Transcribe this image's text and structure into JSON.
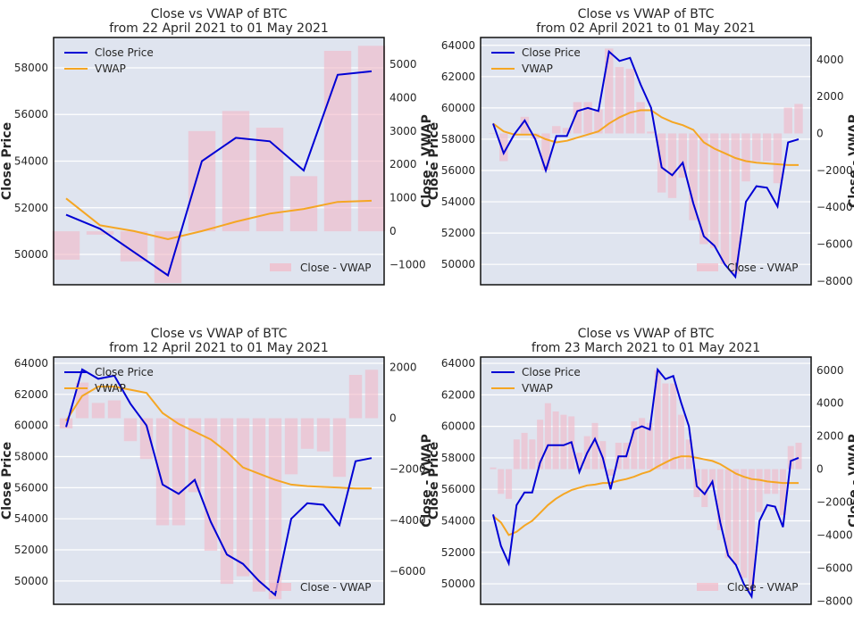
{
  "colors": {
    "close": "#0000d4",
    "vwap": "#f5a623",
    "bars": "#f2b8c6",
    "plot_bg": "#dfe4ef",
    "grid": "#ffffff"
  },
  "chart_data": [
    {
      "type": "line",
      "title_line1": "Close vs VWAP of BTC",
      "title_line2": "from 22 April 2021 to 01 May 2021",
      "ylabel": "Close Price",
      "y2label": "Close - VWAP",
      "ylim": [
        48700,
        59300
      ],
      "y2lim": [
        -1600,
        5800
      ],
      "yticks": [
        50000,
        52000,
        54000,
        56000,
        58000
      ],
      "y2ticks": [
        -1000,
        0,
        1000,
        2000,
        3000,
        4000,
        5000
      ],
      "y2tick_labels": [
        "−1000",
        "0",
        "1000",
        "2000",
        "3000",
        "4000",
        "5000"
      ],
      "legend_location": "upper left",
      "bar_legend_location": "lower right",
      "series": [
        {
          "name": "Close Price",
          "values": [
            51700,
            51100,
            50100,
            49100,
            54000,
            55000,
            54850,
            53600,
            57700,
            57850
          ]
        },
        {
          "name": "VWAP",
          "values": [
            52400,
            51250,
            51000,
            50650,
            51000,
            51400,
            51750,
            51950,
            52250,
            52300
          ]
        },
        {
          "name": "Close - VWAP",
          "values": [
            -850,
            -100,
            -900,
            -1550,
            3000,
            3600,
            3100,
            1650,
            5400,
            5550
          ]
        }
      ]
    },
    {
      "type": "line",
      "title_line1": "Close vs VWAP of BTC",
      "title_line2": "from 02 April 2021 to 01 May 2021",
      "ylabel": "Close Price",
      "y2label": "Close - VWAP",
      "ylim": [
        48700,
        64500
      ],
      "y2lim": [
        -8200,
        5200
      ],
      "yticks": [
        50000,
        52000,
        54000,
        56000,
        58000,
        60000,
        62000,
        64000
      ],
      "y2ticks": [
        -8000,
        -6000,
        -4000,
        -2000,
        0,
        2000,
        4000
      ],
      "y2tick_labels": [
        "−8000",
        "−6000",
        "−4000",
        "−2000",
        "0",
        "2000",
        "4000"
      ],
      "legend_location": "upper left",
      "bar_legend_location": "lower right",
      "series": [
        {
          "name": "Close Price",
          "values": [
            59000,
            57100,
            58300,
            59200,
            58000,
            56000,
            58200,
            58200,
            59800,
            60000,
            59800,
            63600,
            63000,
            63200,
            61500,
            60000,
            56200,
            55700,
            56500,
            53900,
            51800,
            51200,
            50000,
            49200,
            54000,
            55000,
            54900,
            53700,
            57800,
            58000
          ]
        },
        {
          "name": "VWAP",
          "values": [
            59000,
            58500,
            58300,
            58300,
            58300,
            58000,
            57800,
            57900,
            58100,
            58300,
            58500,
            59000,
            59400,
            59700,
            59850,
            59850,
            59400,
            59100,
            58900,
            58600,
            57800,
            57400,
            57100,
            56800,
            56600,
            56500,
            56450,
            56400,
            56350,
            56350
          ]
        },
        {
          "name": "Close - VWAP",
          "values": [
            0,
            -1500,
            0,
            900,
            -300,
            -2000,
            400,
            300,
            1700,
            1700,
            1300,
            4600,
            3600,
            3500,
            1700,
            100,
            -3200,
            -3500,
            -2400,
            -4700,
            -6000,
            -6200,
            -7100,
            -7600,
            -2600,
            -1500,
            -1500,
            -2700,
            1400,
            1600
          ]
        }
      ]
    },
    {
      "type": "line",
      "title_line1": "Close vs VWAP of BTC",
      "title_line2": "from 12 April 2021 to 01 May 2021",
      "ylabel": "Close Price",
      "y2label": "Close - VWAP",
      "ylim": [
        48500,
        64400
      ],
      "y2lim": [
        -7300,
        2400
      ],
      "yticks": [
        50000,
        52000,
        54000,
        56000,
        58000,
        60000,
        62000,
        64000
      ],
      "y2ticks": [
        -6000,
        -4000,
        -2000,
        0,
        2000
      ],
      "y2tick_labels": [
        "−6000",
        "−4000",
        "−2000",
        "0",
        "2000"
      ],
      "legend_location": "upper left",
      "bar_legend_location": "lower right",
      "series": [
        {
          "name": "Close Price",
          "values": [
            59900,
            63600,
            63000,
            63200,
            61400,
            60000,
            56200,
            55600,
            56500,
            53800,
            51700,
            51100,
            50000,
            49100,
            54000,
            55000,
            54900,
            53600,
            57700,
            57900
          ]
        },
        {
          "name": "VWAP",
          "values": [
            60300,
            61900,
            62500,
            62500,
            62300,
            62100,
            60800,
            60100,
            59600,
            59100,
            58300,
            57300,
            56900,
            56500,
            56200,
            56100,
            56050,
            56000,
            55950,
            55950
          ]
        },
        {
          "name": "Close - VWAP",
          "values": [
            -400,
            1400,
            600,
            700,
            -900,
            -1600,
            -4200,
            -4200,
            -2900,
            -5200,
            -6500,
            -6200,
            -6800,
            -7100,
            -2200,
            -1200,
            -1300,
            -2300,
            1700,
            1900
          ]
        }
      ]
    },
    {
      "type": "line",
      "title_line1": "Close vs VWAP of BTC",
      "title_line2": "from 23 March 2021 to 01 May 2021",
      "ylabel": "Close Price",
      "y2label": "Close - VWAP",
      "ylim": [
        48700,
        64400
      ],
      "y2lim": [
        -8200,
        6800
      ],
      "yticks": [
        50000,
        52000,
        54000,
        56000,
        58000,
        60000,
        62000,
        64000
      ],
      "y2ticks": [
        -8000,
        -6000,
        -4000,
        -2000,
        0,
        2000,
        4000,
        6000
      ],
      "y2tick_labels": [
        "−8000",
        "−6000",
        "−4000",
        "−2000",
        "0",
        "2000",
        "4000",
        "6000"
      ],
      "legend_location": "upper left",
      "bar_legend_location": "lower right",
      "series": [
        {
          "name": "Close Price",
          "values": [
            54400,
            52400,
            51300,
            55000,
            55800,
            55800,
            57700,
            58800,
            58800,
            58800,
            59000,
            57100,
            58300,
            59200,
            58000,
            56000,
            58100,
            58100,
            59800,
            60000,
            59800,
            63600,
            63000,
            63200,
            61500,
            60000,
            56200,
            55700,
            56500,
            53900,
            51800,
            51200,
            50000,
            49200,
            54000,
            55000,
            54900,
            53600,
            57800,
            58000
          ]
        },
        {
          "name": "VWAP",
          "values": [
            54300,
            53900,
            53100,
            53300,
            53700,
            54000,
            54500,
            55000,
            55400,
            55700,
            55950,
            56100,
            56250,
            56300,
            56400,
            56400,
            56550,
            56650,
            56800,
            57000,
            57150,
            57450,
            57700,
            57950,
            58100,
            58100,
            58000,
            57900,
            57800,
            57600,
            57300,
            57000,
            56800,
            56650,
            56600,
            56500,
            56450,
            56400,
            56400,
            56400
          ]
        },
        {
          "name": "Close - VWAP",
          "values": [
            100,
            -1500,
            -1800,
            1800,
            2200,
            1800,
            3000,
            4000,
            3500,
            3300,
            3200,
            1000,
            2000,
            2800,
            1700,
            -400,
            1600,
            1600,
            2900,
            3100,
            2800,
            6000,
            5200,
            5200,
            3300,
            1800,
            -1700,
            -2300,
            -1100,
            -3700,
            -5400,
            -5800,
            -6600,
            -7400,
            -2600,
            -1500,
            -1500,
            -2800,
            1400,
            1600
          ]
        }
      ]
    }
  ]
}
